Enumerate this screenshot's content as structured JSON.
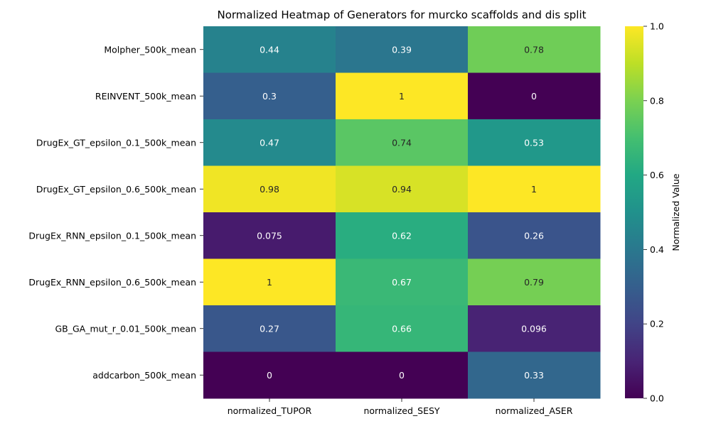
{
  "chart_data": {
    "type": "heatmap",
    "title": "Normalized Heatmap of Generators for murcko scaffolds and dis split",
    "rows": [
      "Molpher_500k_mean",
      "REINVENT_500k_mean",
      "DrugEx_GT_epsilon_0.1_500k_mean",
      "DrugEx_GT_epsilon_0.6_500k_mean",
      "DrugEx_RNN_epsilon_0.1_500k_mean",
      "DrugEx_RNN_epsilon_0.6_500k_mean",
      "GB_GA_mut_r_0.01_500k_mean",
      "addcarbon_500k_mean"
    ],
    "columns": [
      "normalized_TUPOR",
      "normalized_SESY",
      "normalized_ASER"
    ],
    "values": [
      [
        0.44,
        0.39,
        0.78
      ],
      [
        0.3,
        1,
        0
      ],
      [
        0.47,
        0.74,
        0.53
      ],
      [
        0.98,
        0.94,
        1
      ],
      [
        0.075,
        0.62,
        0.26
      ],
      [
        1,
        0.67,
        0.79
      ],
      [
        0.27,
        0.66,
        0.096
      ],
      [
        0,
        0,
        0.33
      ]
    ],
    "value_labels": [
      [
        "0.44",
        "0.39",
        "0.78"
      ],
      [
        "0.3",
        "1",
        "0"
      ],
      [
        "0.47",
        "0.74",
        "0.53"
      ],
      [
        "0.98",
        "0.94",
        "1"
      ],
      [
        "0.075",
        "0.62",
        "0.26"
      ],
      [
        "1",
        "0.67",
        "0.79"
      ],
      [
        "0.27",
        "0.66",
        "0.096"
      ],
      [
        "0",
        "0",
        "0.33"
      ]
    ],
    "colormap": "viridis",
    "colorbar": {
      "label": "Normalized Value",
      "range": [
        0,
        1
      ],
      "ticks": [
        "0.0",
        "0.2",
        "0.4",
        "0.6",
        "0.8",
        "1.0"
      ]
    },
    "grid": false
  }
}
